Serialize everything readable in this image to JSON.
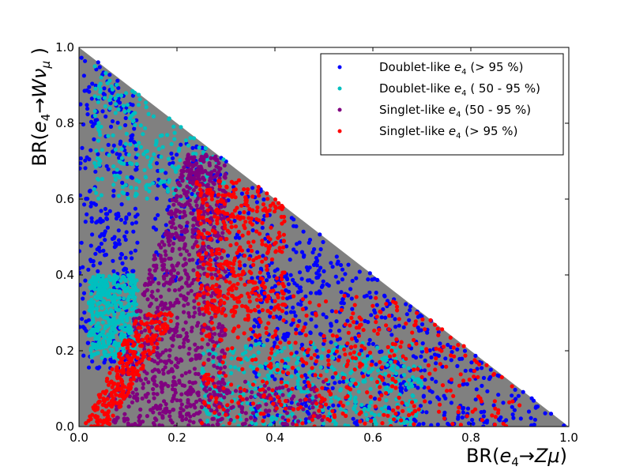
{
  "chart_data": {
    "type": "scatter",
    "title": "",
    "xlabel": "BR(e₄→Zμ)",
    "ylabel": "BR(e₄→Wν_μ)",
    "xlim": [
      0.0,
      1.0
    ],
    "ylim": [
      0.0,
      1.0
    ],
    "x_ticks": [
      "0.0",
      "0.2",
      "0.4",
      "0.6",
      "0.8",
      "1.0"
    ],
    "y_ticks": [
      "0.0",
      "0.2",
      "0.4",
      "0.6",
      "0.8",
      "1.0"
    ],
    "grid": false,
    "legend_position": "top-right",
    "background_region": {
      "description": "gray filled area: all scanned points, x + y ≤ 1",
      "color": "#808080",
      "vertices": [
        [
          0.0,
          0.0
        ],
        [
          1.0,
          0.0
        ],
        [
          0.0,
          1.0
        ]
      ]
    },
    "series": [
      {
        "name": "Doublet-like e4 (> 95 %)",
        "color": "#0000ff",
        "regions": [
          {
            "x": [
              0.0,
              0.12
            ],
            "y": [
              0.15,
              0.98
            ],
            "weight": 0.3
          },
          {
            "x": [
              0.35,
              1.0
            ],
            "y": [
              0.0,
              0.45
            ],
            "weight": 0.5
          },
          {
            "x": [
              0.15,
              0.5
            ],
            "y": [
              0.35,
              0.75
            ],
            "weight": 0.2
          }
        ]
      },
      {
        "name": "Doublet-like e4 ( 50 - 95 %)",
        "color": "#00bfbf",
        "regions": [
          {
            "x": [
              0.02,
              0.12
            ],
            "y": [
              0.18,
              0.4
            ],
            "weight": 0.4
          },
          {
            "x": [
              0.25,
              0.7
            ],
            "y": [
              0.0,
              0.22
            ],
            "weight": 0.4
          },
          {
            "x": [
              0.03,
              0.3
            ],
            "y": [
              0.6,
              0.97
            ],
            "weight": 0.2
          }
        ]
      },
      {
        "name": "Singlet-like e4 (50 - 95 %)",
        "color": "#800080",
        "regions": [
          {
            "band": "diagonal",
            "x_at_y0": [
              0.04,
              0.3
            ],
            "x_at_y1": [
              0.22,
              0.3
            ],
            "y": [
              0.0,
              0.72
            ],
            "weight": 0.85
          },
          {
            "x": [
              0.15,
              0.5
            ],
            "y": [
              0.0,
              0.12
            ],
            "weight": 0.15
          }
        ]
      },
      {
        "name": "Singlet-like e4 (> 95 %)",
        "color": "#ff0000",
        "regions": [
          {
            "band": "diagonal",
            "x_at_y0": [
              0.01,
              0.06
            ],
            "x_at_y1": [
              0.12,
              0.2
            ],
            "y": [
              0.0,
              0.3
            ],
            "weight": 0.25
          },
          {
            "x": [
              0.24,
              0.42
            ],
            "y": [
              0.3,
              0.65
            ],
            "weight": 0.35
          },
          {
            "x": [
              0.25,
              0.9
            ],
            "y": [
              0.0,
              0.35
            ],
            "weight": 0.4
          }
        ]
      }
    ]
  },
  "legend": {
    "items": [
      {
        "prefix": "Doublet-like ",
        "var": "e",
        "sub": "4",
        "suffix": " (> 95 %)",
        "color": "#0000ff"
      },
      {
        "prefix": "Doublet-like ",
        "var": "e",
        "sub": "4",
        "suffix": " ( 50 - 95 %)",
        "color": "#00bfbf"
      },
      {
        "prefix": "Singlet-like ",
        "var": "e",
        "sub": "4",
        "suffix": " (50 - 95 %)",
        "color": "#800080"
      },
      {
        "prefix": "Singlet-like ",
        "var": "e",
        "sub": "4",
        "suffix": " (> 95 %)",
        "color": "#ff0000"
      }
    ]
  }
}
